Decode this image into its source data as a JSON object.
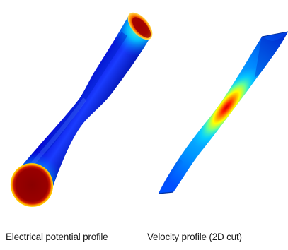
{
  "captions": {
    "left": "Electrical potential profile",
    "right": "Velocity profile (2D cut)"
  },
  "colormap": {
    "name": "jet",
    "stops": [
      "#00007f",
      "#0000ff",
      "#0080ff",
      "#00ffff",
      "#80ff80",
      "#ffff00",
      "#ff8000",
      "#ff0000",
      "#7f0000"
    ]
  }
}
